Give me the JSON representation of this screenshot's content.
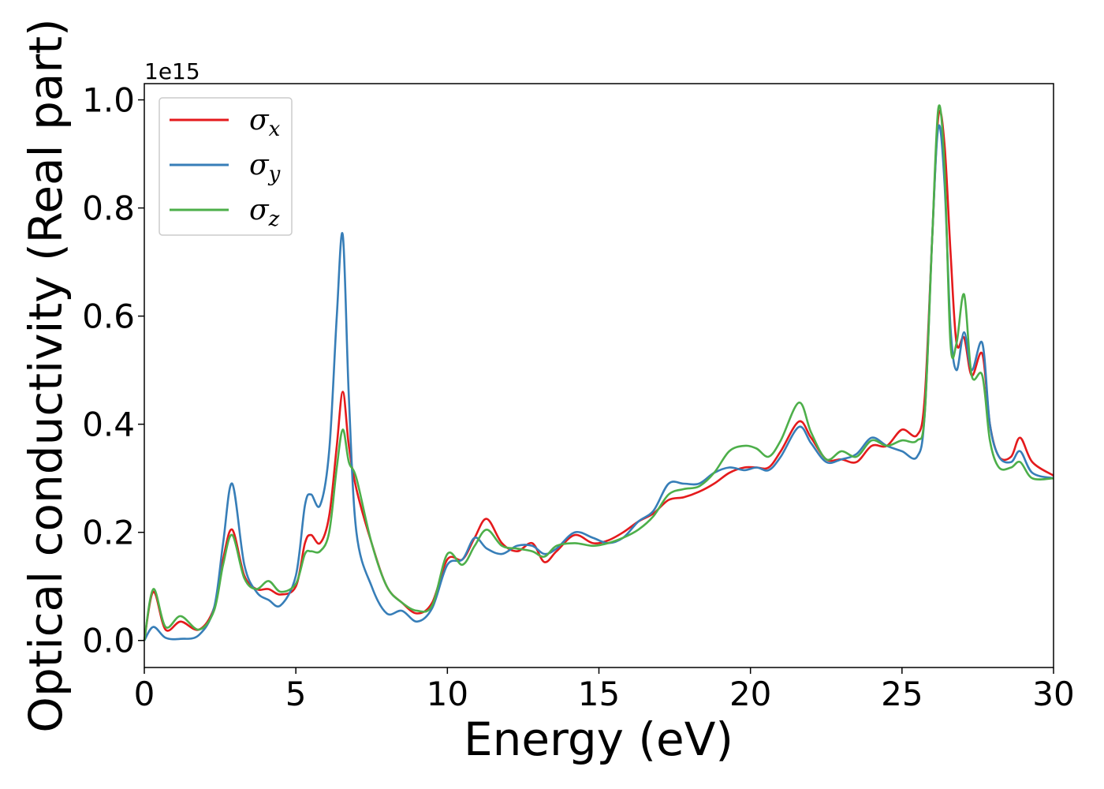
{
  "chart_data": {
    "type": "line",
    "title": "",
    "xlabel": "Energy (eV)",
    "ylabel": "Optical conductivity (Real part)",
    "y_offset_label": "1e15",
    "xlim": [
      0,
      30
    ],
    "ylim": [
      -0.05,
      1.03
    ],
    "xticks": [
      0,
      5,
      10,
      15,
      20,
      25,
      30
    ],
    "xtick_labels": [
      "0",
      "5",
      "10",
      "15",
      "20",
      "25",
      "30"
    ],
    "yticks": [
      0.0,
      0.2,
      0.4,
      0.6,
      0.8,
      1.0
    ],
    "ytick_labels": [
      "0.0",
      "0.2",
      "0.4",
      "0.6",
      "0.8",
      "1.0"
    ],
    "grid": false,
    "legend_position": "top-left",
    "series": [
      {
        "name": "σx",
        "symbol": "σ",
        "subscript": "x",
        "color": "#e41a1c",
        "x": [
          0,
          0.3,
          0.7,
          1.2,
          1.8,
          2.3,
          2.6,
          2.9,
          3.3,
          3.7,
          4.1,
          4.5,
          5.0,
          5.3,
          5.5,
          5.8,
          6.1,
          6.35,
          6.55,
          6.75,
          7.0,
          7.5,
          8.0,
          8.5,
          9.0,
          9.5,
          10.0,
          10.5,
          10.9,
          11.3,
          11.8,
          12.3,
          12.8,
          13.2,
          13.6,
          14.2,
          14.8,
          15.3,
          15.8,
          16.3,
          16.8,
          17.3,
          17.8,
          18.3,
          18.8,
          19.3,
          19.8,
          20.2,
          20.6,
          21.0,
          21.6,
          22.0,
          22.5,
          23.0,
          23.5,
          24.0,
          24.5,
          25.0,
          25.5,
          25.75,
          26.0,
          26.2,
          26.4,
          26.6,
          26.8,
          27.05,
          27.3,
          27.65,
          27.9,
          28.2,
          28.6,
          28.9,
          29.3,
          30.0
        ],
        "values": [
          0.0,
          0.09,
          0.02,
          0.035,
          0.02,
          0.06,
          0.15,
          0.205,
          0.12,
          0.095,
          0.095,
          0.085,
          0.1,
          0.18,
          0.195,
          0.18,
          0.23,
          0.36,
          0.46,
          0.36,
          0.28,
          0.18,
          0.1,
          0.07,
          0.05,
          0.07,
          0.15,
          0.15,
          0.19,
          0.225,
          0.18,
          0.165,
          0.18,
          0.145,
          0.165,
          0.195,
          0.18,
          0.185,
          0.2,
          0.22,
          0.235,
          0.26,
          0.265,
          0.275,
          0.29,
          0.31,
          0.32,
          0.32,
          0.32,
          0.35,
          0.405,
          0.375,
          0.335,
          0.335,
          0.33,
          0.36,
          0.36,
          0.39,
          0.38,
          0.45,
          0.75,
          0.97,
          0.92,
          0.72,
          0.55,
          0.56,
          0.49,
          0.53,
          0.4,
          0.34,
          0.34,
          0.375,
          0.33,
          0.305
        ]
      },
      {
        "name": "σy",
        "symbol": "σ",
        "subscript": "y",
        "color": "#377eb8",
        "x": [
          0,
          0.3,
          0.7,
          1.2,
          1.8,
          2.3,
          2.6,
          2.9,
          3.3,
          3.7,
          4.1,
          4.5,
          5.0,
          5.3,
          5.5,
          5.8,
          6.1,
          6.35,
          6.55,
          6.75,
          7.0,
          7.5,
          8.0,
          8.5,
          9.0,
          9.5,
          10.0,
          10.5,
          10.9,
          11.3,
          11.8,
          12.3,
          12.8,
          13.2,
          13.6,
          14.2,
          14.8,
          15.3,
          15.8,
          16.3,
          16.8,
          17.3,
          17.8,
          18.3,
          18.8,
          19.3,
          19.8,
          20.2,
          20.6,
          21.0,
          21.6,
          22.0,
          22.5,
          23.0,
          23.5,
          24.0,
          24.5,
          25.0,
          25.5,
          25.75,
          26.0,
          26.2,
          26.4,
          26.6,
          26.8,
          27.05,
          27.3,
          27.65,
          27.9,
          28.2,
          28.6,
          28.9,
          29.3,
          30.0
        ],
        "values": [
          0.0,
          0.025,
          0.005,
          0.003,
          0.01,
          0.06,
          0.18,
          0.29,
          0.14,
          0.09,
          0.075,
          0.065,
          0.12,
          0.25,
          0.27,
          0.25,
          0.35,
          0.6,
          0.75,
          0.45,
          0.2,
          0.1,
          0.05,
          0.055,
          0.035,
          0.06,
          0.14,
          0.15,
          0.19,
          0.17,
          0.16,
          0.175,
          0.175,
          0.16,
          0.17,
          0.2,
          0.19,
          0.18,
          0.19,
          0.22,
          0.24,
          0.29,
          0.29,
          0.29,
          0.31,
          0.32,
          0.315,
          0.32,
          0.315,
          0.34,
          0.395,
          0.365,
          0.33,
          0.335,
          0.345,
          0.375,
          0.36,
          0.35,
          0.34,
          0.42,
          0.75,
          0.95,
          0.85,
          0.58,
          0.5,
          0.57,
          0.5,
          0.55,
          0.4,
          0.34,
          0.33,
          0.35,
          0.31,
          0.3
        ]
      },
      {
        "name": "σz",
        "symbol": "σ",
        "subscript": "z",
        "color": "#4daf4a",
        "x": [
          0,
          0.3,
          0.7,
          1.2,
          1.8,
          2.3,
          2.6,
          2.9,
          3.3,
          3.7,
          4.1,
          4.5,
          5.0,
          5.3,
          5.5,
          5.8,
          6.1,
          6.35,
          6.55,
          6.75,
          7.0,
          7.5,
          8.0,
          8.5,
          9.0,
          9.5,
          10.0,
          10.5,
          10.9,
          11.3,
          11.8,
          12.3,
          12.8,
          13.2,
          13.6,
          14.2,
          14.8,
          15.3,
          15.8,
          16.3,
          16.8,
          17.3,
          17.8,
          18.3,
          18.8,
          19.3,
          19.8,
          20.2,
          20.6,
          21.0,
          21.6,
          22.0,
          22.5,
          23.0,
          23.5,
          24.0,
          24.5,
          25.0,
          25.5,
          25.75,
          26.0,
          26.2,
          26.4,
          26.6,
          26.8,
          27.05,
          27.3,
          27.65,
          27.9,
          28.2,
          28.6,
          28.9,
          29.3,
          30.0
        ],
        "values": [
          0.0,
          0.095,
          0.025,
          0.045,
          0.02,
          0.055,
          0.14,
          0.195,
          0.115,
          0.095,
          0.11,
          0.09,
          0.105,
          0.16,
          0.165,
          0.165,
          0.2,
          0.32,
          0.39,
          0.33,
          0.3,
          0.18,
          0.1,
          0.07,
          0.055,
          0.065,
          0.16,
          0.14,
          0.175,
          0.205,
          0.175,
          0.17,
          0.165,
          0.155,
          0.175,
          0.18,
          0.175,
          0.18,
          0.19,
          0.205,
          0.23,
          0.27,
          0.28,
          0.285,
          0.31,
          0.35,
          0.36,
          0.355,
          0.34,
          0.37,
          0.44,
          0.385,
          0.335,
          0.35,
          0.34,
          0.37,
          0.36,
          0.37,
          0.37,
          0.42,
          0.75,
          0.985,
          0.88,
          0.55,
          0.55,
          0.64,
          0.49,
          0.49,
          0.37,
          0.32,
          0.32,
          0.33,
          0.3,
          0.3
        ]
      }
    ]
  }
}
